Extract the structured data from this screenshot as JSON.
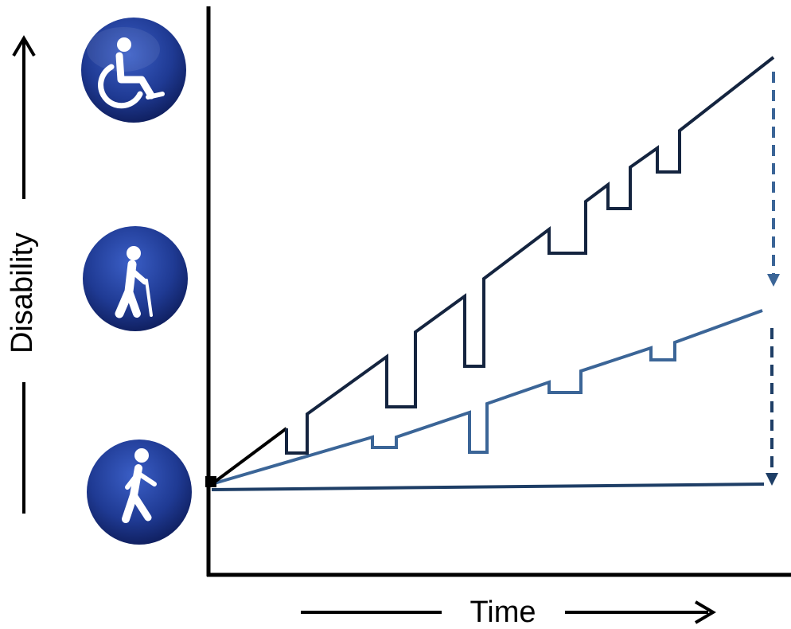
{
  "labels": {
    "y_axis": "Disability",
    "x_axis": "Time"
  },
  "icons": [
    {
      "name": "wheelchair-icon",
      "level": "high"
    },
    {
      "name": "person-with-cane-icon",
      "level": "moderate"
    },
    {
      "name": "walking-person-icon",
      "level": "none"
    }
  ],
  "colors": {
    "icon_fill": "#1f3a93",
    "icon_dark": "#0f1f5c",
    "dark_line": "#14243f",
    "mid_line": "#3b6597",
    "baseline_line": "#1e3e66",
    "axis": "#000000"
  }
}
